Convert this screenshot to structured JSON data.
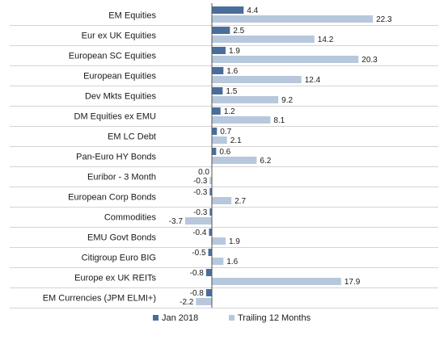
{
  "chart_data": {
    "type": "bar",
    "orientation": "horizontal",
    "categories": [
      "EM Equities",
      "Eur ex UK Equities",
      "European SC Equities",
      "European Equities",
      "Dev Mkts Equities",
      "DM Equities ex EMU",
      "EM LC Debt",
      "Pan-Euro HY Bonds",
      "Euribor - 3 Month",
      "European Corp Bonds",
      "Commodities",
      "EMU Govt Bonds",
      "Citigroup Euro BIG",
      "Europe ex UK REITs",
      "EM Currencies (JPM ELMI+)"
    ],
    "series": [
      {
        "name": "Jan 2018",
        "color": "#4a6e9b",
        "values": [
          4.4,
          2.5,
          1.9,
          1.6,
          1.5,
          1.2,
          0.7,
          0.6,
          0.0,
          -0.3,
          -0.3,
          -0.4,
          -0.5,
          -0.8,
          -0.8
        ],
        "labels": [
          "4.4",
          "2.5",
          "1.9",
          "1.6",
          "1.5",
          "1.2",
          "0.7",
          "0.6",
          "0.0",
          "-0.3",
          "-0.3",
          "-0.4",
          "-0.5",
          "-0.8",
          "-0.8"
        ]
      },
      {
        "name": "Trailing 12 Months",
        "color": "#b7c8dc",
        "values": [
          22.3,
          14.2,
          20.3,
          12.4,
          9.2,
          8.1,
          2.1,
          6.2,
          -0.3,
          2.7,
          -3.7,
          1.9,
          1.6,
          17.9,
          -2.2
        ],
        "labels": [
          "22.3",
          "14.2",
          "20.3",
          "12.4",
          "9.2",
          "8.1",
          "2.1",
          "6.2",
          "-0.3",
          "2.7",
          "-3.7",
          "1.9",
          "1.6",
          "17.9",
          "-2.2"
        ]
      }
    ],
    "legend_position": "bottom",
    "title": "",
    "xlabel": "",
    "ylabel": ""
  }
}
